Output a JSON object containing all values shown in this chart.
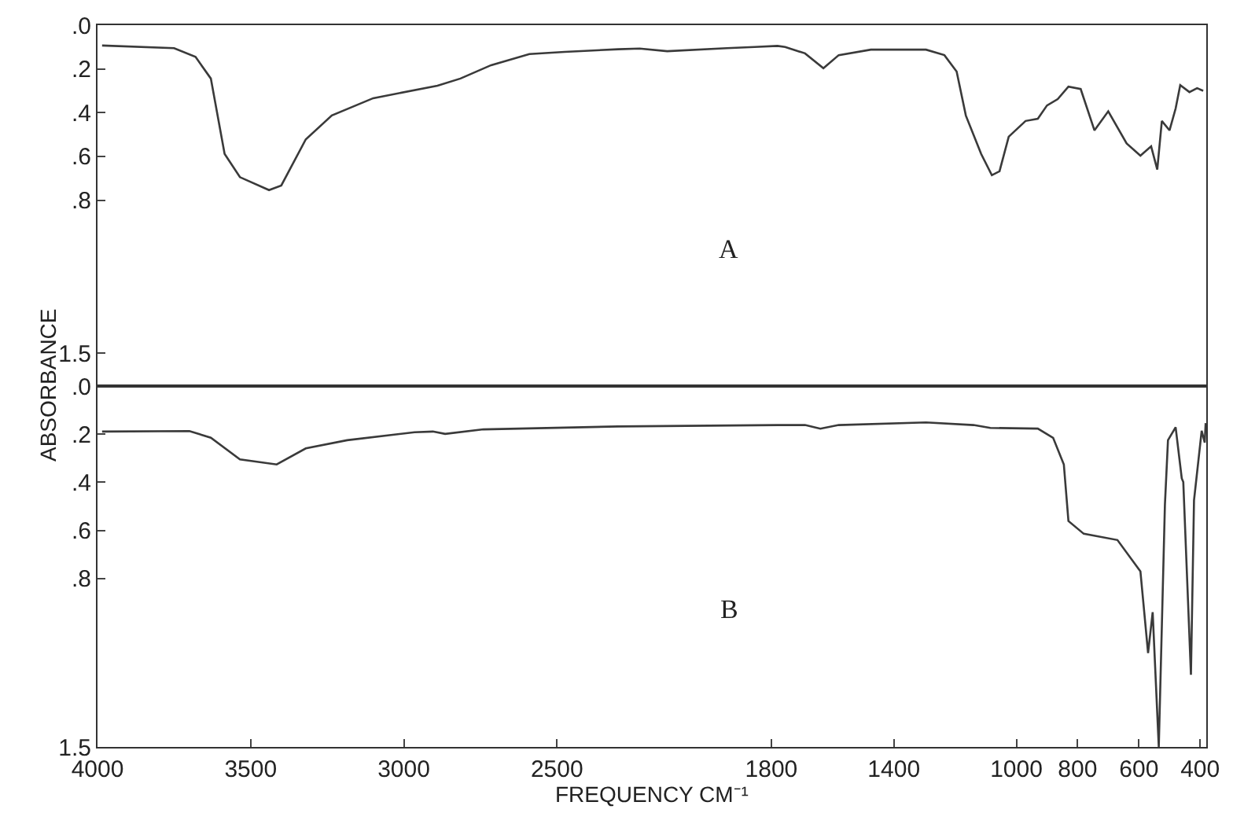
{
  "chart_data": [
    {
      "type": "line",
      "ylabel": "ABSORBANCE",
      "tick_labels": "y",
      "grid": false,
      "marker": "none",
      "line_style": "solid",
      "x": [
        3985,
        3750,
        3680,
        3630,
        3585,
        3535,
        3440,
        3400,
        3320,
        3235,
        3100,
        2890,
        2815,
        2715,
        2590,
        2475,
        2300,
        2230,
        2140,
        1945,
        1855,
        1780,
        1755,
        1690,
        1630,
        1580,
        1475,
        1295,
        1235,
        1195,
        1165,
        1115,
        1080,
        1055,
        1025,
        970,
        930,
        900,
        865,
        830,
        790,
        745,
        700,
        640,
        595,
        560,
        540,
        525,
        500,
        480,
        465,
        435,
        410,
        390
      ],
      "series": [
        {
          "color": "#3a3a3a",
          "values": [
            0.093,
            0.105,
            0.145,
            0.244,
            0.589,
            0.695,
            0.754,
            0.733,
            0.522,
            0.413,
            0.334,
            0.277,
            0.244,
            0.183,
            0.132,
            0.122,
            0.11,
            0.107,
            0.119,
            0.105,
            0.1,
            0.095,
            0.1,
            0.129,
            0.197,
            0.137,
            0.112,
            0.112,
            0.137,
            0.212,
            0.413,
            0.589,
            0.686,
            0.668,
            0.51,
            0.438,
            0.428,
            0.367,
            0.338,
            0.281,
            0.292,
            0.481,
            0.394,
            0.541,
            0.597,
            0.554,
            0.66,
            0.438,
            0.481,
            0.381,
            0.274,
            0.306,
            0.288,
            0.3
          ]
        }
      ],
      "annotations": [
        "A"
      ],
      "xlim": [
        4000,
        380
      ],
      "ylim": [
        1.65,
        0
      ],
      "yticks": [
        {
          "value": 0,
          "label": ".0"
        },
        {
          "value": 0.2,
          "label": ".2"
        },
        {
          "value": 0.4,
          "label": ".4"
        },
        {
          "value": 0.6,
          "label": ".6"
        },
        {
          "value": 0.8,
          "label": ".8"
        },
        {
          "value": 1.5,
          "label": "1.5"
        }
      ]
    },
    {
      "type": "line",
      "xlabel": "FREQUENCY CM⁻¹",
      "grid": false,
      "marker": "none",
      "line_style": "solid",
      "x": [
        3985,
        3700,
        3630,
        3535,
        3415,
        3320,
        3185,
        2965,
        2905,
        2865,
        2740,
        2300,
        1780,
        1690,
        1640,
        1580,
        1295,
        1140,
        1085,
        930,
        880,
        845,
        830,
        780,
        670,
        595,
        570,
        555,
        535,
        515,
        505,
        480,
        460,
        455,
        430,
        420,
        395,
        385,
        382
      ],
      "series": [
        {
          "color": "#3a3a3a",
          "values": [
            0.189,
            0.187,
            0.215,
            0.305,
            0.326,
            0.259,
            0.225,
            0.192,
            0.189,
            0.199,
            0.18,
            0.168,
            0.162,
            0.162,
            0.177,
            0.162,
            0.151,
            0.162,
            0.174,
            0.177,
            0.215,
            0.326,
            0.561,
            0.614,
            0.64,
            0.77,
            1.11,
            0.94,
            1.5,
            0.493,
            0.225,
            0.171,
            0.384,
            0.399,
            1.2,
            0.475,
            0.186,
            0.235,
            0.154
          ]
        }
      ],
      "annotations": [
        "B"
      ],
      "xlim": [
        4000,
        380
      ],
      "ylim": [
        1.5,
        0
      ],
      "xticks": [
        4000,
        3500,
        3000,
        2500,
        1800,
        1400,
        1000,
        800,
        600,
        400
      ],
      "yticks": [
        {
          "value": 0,
          "label": ".0"
        },
        {
          "value": 0.2,
          "label": ".2"
        },
        {
          "value": 0.4,
          "label": ".4"
        },
        {
          "value": 0.6,
          "label": ".6"
        },
        {
          "value": 0.8,
          "label": ".8"
        },
        {
          "value": 1.5,
          "label": "1.5"
        }
      ]
    }
  ]
}
